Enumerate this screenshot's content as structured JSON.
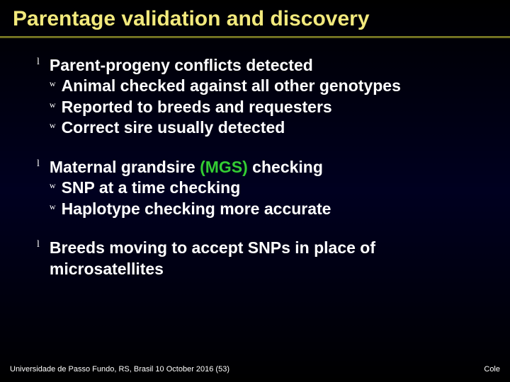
{
  "slide": {
    "title": "Parentage validation and discovery",
    "title_color": "#f2e97c",
    "title_fontsize": 30,
    "underline_color_top": "#8a8a2a",
    "underline_color_bottom": "#5a5a1a",
    "background_gradient": [
      "#000000",
      "#000020",
      "#000000"
    ],
    "bullet_glyph_top": "l",
    "bullet_glyph_sub": "w",
    "bullet_top_fontsize": 14,
    "bullet_sub_fontsize": 12,
    "body_fontsize": 23,
    "sub_fontsize": 23,
    "text_color": "#ffffff",
    "accent_color": "#33cc33",
    "items": [
      {
        "text": "Parent-progeny conflicts detected",
        "sub": [
          {
            "text": "Animal checked against all other genotypes"
          },
          {
            "text": "Reported to breeds and requesters"
          },
          {
            "text": "Correct sire usually detected"
          }
        ]
      },
      {
        "text_parts": [
          {
            "t": "Maternal grandsire ",
            "c": "#ffffff"
          },
          {
            "t": "(MGS)",
            "c": "#33cc33"
          },
          {
            "t": " checking",
            "c": "#ffffff"
          }
        ],
        "sub": [
          {
            "text": "SNP at a time checking"
          },
          {
            "text": "Haplotype checking more accurate"
          }
        ]
      },
      {
        "text": "Breeds moving to accept SNPs in place of microsatellites",
        "sub": []
      }
    ],
    "footer": {
      "left": "Universidade de Passo Fundo, RS, Brasil 10 October 2016 (53)",
      "right": "Cole",
      "fontsize": 11,
      "color": "#ffffff"
    }
  }
}
